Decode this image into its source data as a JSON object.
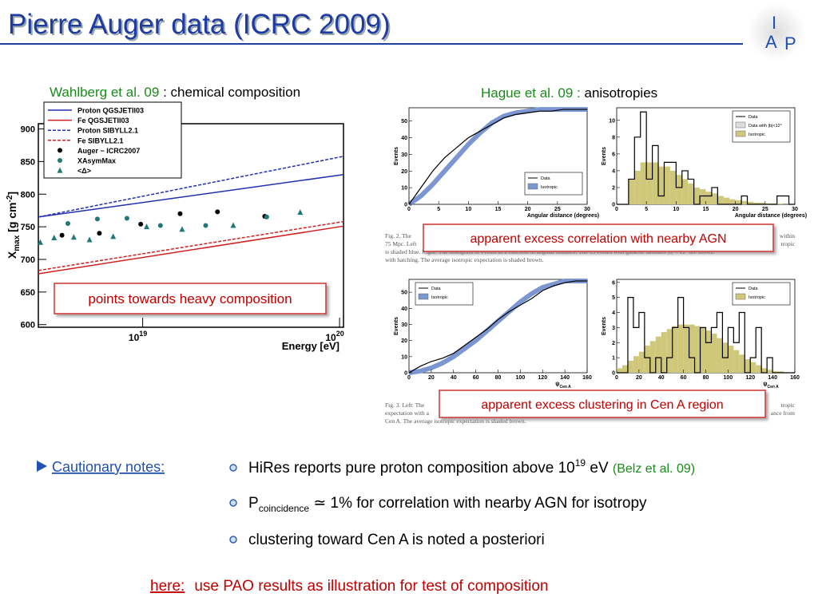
{
  "header": {
    "title": "Pierre Auger data (ICRC 2009)",
    "logo": [
      "I",
      "A",
      "P"
    ]
  },
  "left": {
    "author": "Wahlberg et al. 09",
    "topic": " : chemical composition",
    "chart": {
      "type": "line",
      "ylabel": "X",
      "ylabel_sub": "max",
      "ylabel_rest": " [g cm",
      "ylabel_sup": "-2",
      "ylabel_end": "]",
      "xlabel": "Energy [eV]",
      "xlog": true,
      "xlim": [
        18.47,
        20.02
      ],
      "ylim": [
        596,
        908
      ],
      "yticks": [
        600,
        650,
        700,
        750,
        800,
        850,
        900
      ],
      "xticks": [
        {
          "value": 19,
          "label": "10",
          "exponent": "19"
        },
        {
          "value": 20,
          "label": "10",
          "exponent": "20"
        }
      ],
      "series": [
        {
          "name": "Proton QGSJETII03",
          "color": "#2030b0",
          "dashed": false,
          "x": [
            18.47,
            20.02
          ],
          "values": [
            765,
            830
          ]
        },
        {
          "name": "Fe QGSJETII03",
          "color": "#d02020",
          "dashed": false,
          "x": [
            18.47,
            20.02
          ],
          "values": [
            678,
            751
          ]
        },
        {
          "name": "Proton SIBYLL2.1",
          "color": "#2030b0",
          "dashed": true,
          "x": [
            18.47,
            20.02
          ],
          "values": [
            765,
            858
          ]
        },
        {
          "name": "Fe SIBYLL2.1",
          "color": "#d02020",
          "dashed": true,
          "x": [
            18.47,
            20.02
          ],
          "values": [
            683,
            758
          ]
        },
        {
          "name": "Auger − ICRC2007",
          "color": "#000000",
          "marker": "circle",
          "x": [
            18.59,
            18.78,
            18.99,
            19.19,
            19.38,
            19.62
          ],
          "values": [
            737,
            740,
            754,
            770,
            773,
            766
          ]
        },
        {
          "name": "XAsymMax",
          "color": "#207878",
          "marker": "circle",
          "x": [
            18.62,
            18.77,
            18.92,
            19.09,
            19.32,
            19.63
          ],
          "values": [
            755,
            762,
            763,
            752,
            752,
            765
          ]
        },
        {
          "name": "<Δ>",
          "color": "#207878",
          "marker": "triangle",
          "x": [
            18.48,
            18.55,
            18.65,
            18.73,
            18.85,
            19.02,
            19.2,
            19.46,
            19.8
          ],
          "values": [
            726,
            733,
            734,
            730,
            735,
            750,
            746,
            752,
            772
          ]
        }
      ]
    },
    "note": "points towards heavy composition"
  },
  "right": {
    "author": "Hague et al. 09 :",
    "topic": " anisotropies",
    "plots": [
      {
        "type": "cumulative",
        "ylabel": "Events",
        "xlabel": "Angular distance (degrees)",
        "xlim": [
          0,
          30
        ],
        "ylim": [
          0,
          58
        ],
        "xticks": [
          0,
          5,
          10,
          15,
          20,
          25,
          30
        ],
        "yticks": [
          0,
          10,
          20,
          30,
          40,
          50
        ],
        "legend": [
          "Data",
          "Isotropic"
        ],
        "x": [
          0,
          2,
          4,
          6,
          8,
          10,
          12,
          14,
          16,
          18,
          20,
          22,
          24,
          26,
          28,
          30
        ],
        "data": [
          0,
          10,
          20,
          28,
          34,
          40,
          44,
          48,
          52,
          54,
          55,
          56,
          56,
          57,
          57,
          57
        ],
        "isotropic": [
          0,
          5,
          12,
          20,
          28,
          36,
          43,
          49,
          53,
          55,
          56,
          57,
          57,
          57,
          57,
          57
        ]
      },
      {
        "type": "histogram",
        "ylabel": "Events",
        "xlabel": "Angular distance (degrees)",
        "xlim": [
          0,
          30
        ],
        "ylim": [
          0,
          11.5
        ],
        "xticks": [
          0,
          5,
          10,
          15,
          20,
          25,
          30
        ],
        "yticks": [
          0,
          2,
          4,
          6,
          8,
          10
        ],
        "legend": [
          "Data",
          "Data with |b|<12°",
          "Isotropic"
        ],
        "bins": [
          0,
          1,
          2,
          3,
          4,
          5,
          6,
          7,
          8,
          9,
          10,
          11,
          12,
          13,
          14,
          15,
          16,
          17,
          18,
          19,
          20,
          21,
          22,
          23,
          24,
          25,
          26,
          27,
          28,
          29,
          30
        ],
        "data": [
          0,
          0,
          3,
          8,
          11,
          3,
          7,
          1,
          5,
          5,
          2,
          4,
          3,
          0,
          1,
          1,
          2,
          0,
          0,
          0,
          0,
          1,
          0,
          0,
          0,
          0,
          0,
          1,
          1,
          0
        ],
        "isotropic": [
          0,
          0,
          3,
          4,
          5,
          5,
          5,
          4.5,
          4.5,
          4,
          3.5,
          3,
          2.5,
          2,
          1.8,
          1.5,
          1.3,
          1,
          0.8,
          0.6,
          0.5,
          0.4,
          0.3,
          0.2,
          0.2,
          0.1,
          0.1,
          0.1,
          0,
          0
        ]
      },
      {
        "type": "cumulative",
        "ylabel": "Events",
        "xlabel": "ψ",
        "xlabel_sub": "Cen A",
        "xlim": [
          0,
          160
        ],
        "ylim": [
          0,
          58
        ],
        "xticks": [
          0,
          20,
          40,
          60,
          80,
          100,
          120,
          140,
          160
        ],
        "yticks": [
          0,
          10,
          20,
          30,
          40,
          50
        ],
        "legend": [
          "Data",
          "Isotropic"
        ],
        "x": [
          0,
          10,
          20,
          30,
          40,
          50,
          60,
          70,
          80,
          90,
          100,
          110,
          120,
          130,
          140,
          150,
          160
        ],
        "data": [
          0,
          4,
          7,
          9,
          12,
          17,
          22,
          27,
          33,
          38,
          42,
          46,
          51,
          54,
          56,
          57,
          57
        ],
        "isotropic": [
          0,
          1,
          3,
          6,
          10,
          15,
          20,
          26,
          32,
          38,
          44,
          49,
          53,
          55,
          57,
          57,
          57
        ]
      },
      {
        "type": "histogram",
        "ylabel": "Events",
        "xlabel": "ψ",
        "xlabel_sub": "Cen A",
        "xlim": [
          0,
          160
        ],
        "ylim": [
          0,
          6.2
        ],
        "xticks": [
          0,
          20,
          40,
          60,
          80,
          100,
          120,
          140,
          160
        ],
        "yticks": [
          0,
          1,
          2,
          3,
          4,
          5,
          6
        ],
        "legend": [
          "Data",
          "Isotropic"
        ],
        "bins": [
          0,
          5,
          10,
          15,
          20,
          25,
          30,
          35,
          40,
          45,
          50,
          55,
          60,
          65,
          70,
          75,
          80,
          85,
          90,
          95,
          100,
          105,
          110,
          115,
          120,
          125,
          130,
          135,
          140,
          145,
          150,
          155,
          160
        ],
        "data": [
          0,
          0,
          5,
          3,
          4,
          1,
          0,
          1,
          0,
          1,
          3,
          5,
          3,
          1,
          0,
          3,
          2,
          3,
          4,
          1,
          3,
          2,
          4,
          0,
          1,
          3,
          0,
          1,
          0,
          0,
          0,
          0
        ],
        "isotropic": [
          0.3,
          0.5,
          0.8,
          1.1,
          1.4,
          1.8,
          2.1,
          2.4,
          2.7,
          2.9,
          3.1,
          3.2,
          3.2,
          3.2,
          3.1,
          3.0,
          2.8,
          2.6,
          2.3,
          2.0,
          1.8,
          1.5,
          1.2,
          0.9,
          0.7,
          0.5,
          0.3,
          0.2,
          0.1,
          0.1,
          0,
          0
        ]
      }
    ],
    "caption1": [
      {
        "left": "Fig. 2.   The",
        "right": "within"
      },
      {
        "left": "75 Mpc. Left",
        "right": "tropic"
      },
      {
        "left": "is shaded blue. Right: The histogram of events as a function of angular distance. The 13 events with galactic latitudes |b| < 12° are shown",
        "right": ""
      },
      {
        "left": "with hatching. The average isotropic expectation is shaded brown.",
        "right": ""
      }
    ],
    "caption2": [
      {
        "left": "Fig. 3.     Left: The",
        "right": "tropic"
      },
      {
        "left": "expectation with a",
        "right": "ance from"
      },
      {
        "left": "Cen A. The average isotropic expectation is shaded brown.",
        "right": ""
      }
    ],
    "note1": "apparent excess correlation with nearby AGN",
    "note2": "apparent excess clustering in Cen A region"
  },
  "notes": {
    "heading": "Cautionary notes:",
    "items": [
      {
        "text": "HiRes reports pure proton composition above 10",
        "sup": "19",
        "after": " eV ",
        "ref": "(Belz et al. 09)"
      },
      {
        "text": "P",
        "sub": "coincidence",
        "after": " ≃ 1% for correlation with nearby AGN for isotropy"
      },
      {
        "text": "clustering toward Cen A is noted a posteriori"
      }
    ]
  },
  "footer": {
    "link": "here:",
    "text": "use PAO results as illustration for test of composition"
  }
}
